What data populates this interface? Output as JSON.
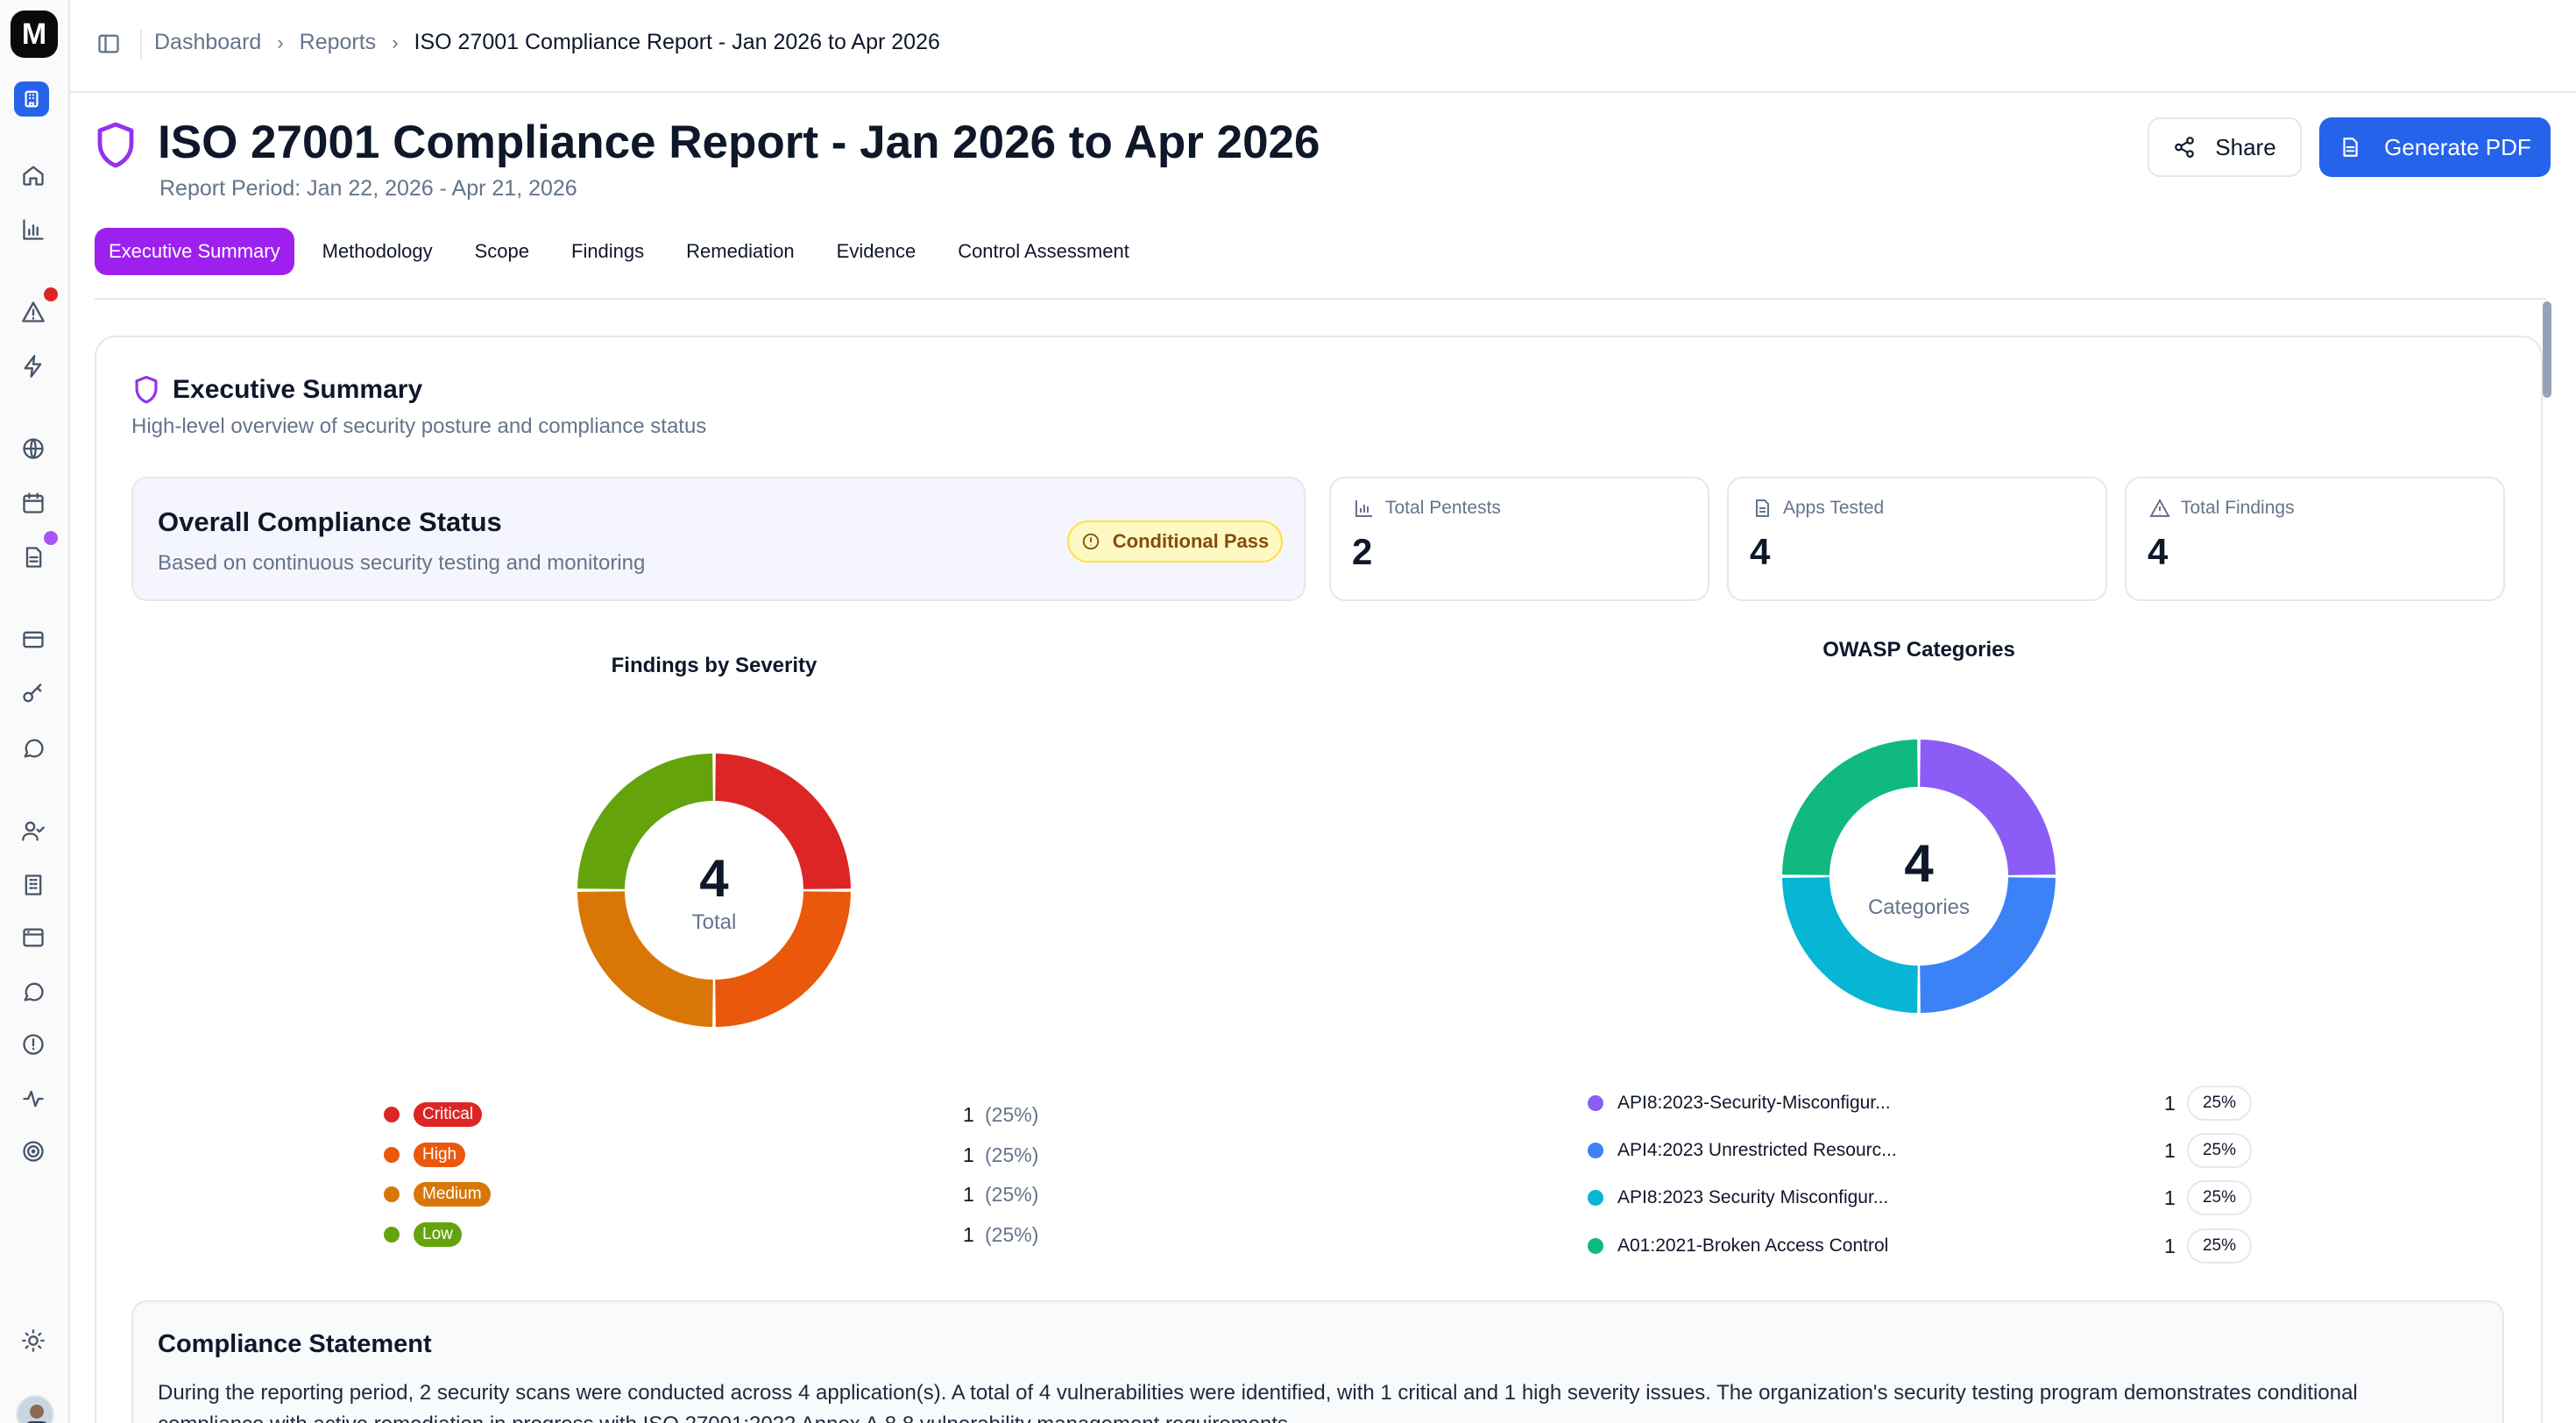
{
  "sidebar": {
    "logo_letter": "M",
    "icons": [
      "home-icon",
      "chart-icon",
      "alert-icon",
      "bolt-icon",
      "globe-icon",
      "calendar-icon",
      "document-icon",
      "card-icon",
      "key-icon",
      "chat-icon",
      "user-check-icon",
      "building-icon",
      "browser-icon",
      "message-icon",
      "info-circle-icon",
      "activity-icon",
      "target-icon",
      "sun-icon"
    ]
  },
  "breadcrumb": {
    "items": [
      "Dashboard",
      "Reports",
      "ISO 27001 Compliance Report - Jan 2026 to Apr 2026"
    ]
  },
  "header": {
    "title": "ISO 27001 Compliance Report - Jan 2026 to Apr 2026",
    "period": "Report Period: Jan 22, 2026 - Apr 21, 2026",
    "share_label": "Share",
    "pdf_label": "Generate PDF"
  },
  "tabs": [
    "Executive Summary",
    "Methodology",
    "Scope",
    "Findings",
    "Remediation",
    "Evidence",
    "Control Assessment"
  ],
  "summary": {
    "title": "Executive Summary",
    "subtitle": "High-level overview of security posture and compliance status",
    "status_title": "Overall Compliance Status",
    "status_subtitle": "Based on continuous security testing and monitoring",
    "status_badge": "Conditional Pass",
    "stats": [
      {
        "label": "Total Pentests",
        "value": "2"
      },
      {
        "label": "Apps Tested",
        "value": "4"
      },
      {
        "label": "Total Findings",
        "value": "4"
      }
    ]
  },
  "severity_chart": {
    "title": "Findings by Severity",
    "center_value": "4",
    "center_caption": "Total",
    "rows": [
      {
        "label": "Critical",
        "count": "1",
        "pct": "(25%)",
        "color": "#dc2626"
      },
      {
        "label": "High",
        "count": "1",
        "pct": "(25%)",
        "color": "#ea580c"
      },
      {
        "label": "Medium",
        "count": "1",
        "pct": "(25%)",
        "color": "#d97706"
      },
      {
        "label": "Low",
        "count": "1",
        "pct": "(25%)",
        "color": "#65a30d"
      }
    ]
  },
  "owasp_chart": {
    "title": "OWASP Categories",
    "center_value": "4",
    "center_caption": "Categories",
    "rows": [
      {
        "label": "API8:2023-Security-Misconfigur...",
        "count": "1",
        "pct": "25%",
        "color": "#8b5cf6"
      },
      {
        "label": "API4:2023 Unrestricted Resourc...",
        "count": "1",
        "pct": "25%",
        "color": "#3b82f6"
      },
      {
        "label": "API8:2023 Security Misconfigur...",
        "count": "1",
        "pct": "25%",
        "color": "#06b6d4"
      },
      {
        "label": "A01:2021-Broken Access Control",
        "count": "1",
        "pct": "25%",
        "color": "#10b981"
      }
    ]
  },
  "chart_data": [
    {
      "type": "pie",
      "title": "Findings by Severity",
      "categories": [
        "Critical",
        "High",
        "Medium",
        "Low"
      ],
      "values": [
        1,
        1,
        1,
        1
      ],
      "colors": [
        "#dc2626",
        "#ea580c",
        "#d97706",
        "#65a30d"
      ]
    },
    {
      "type": "pie",
      "title": "OWASP Categories",
      "categories": [
        "API8:2023-Security-Misconfigur...",
        "API4:2023 Unrestricted Resourc...",
        "API8:2023 Security Misconfigur...",
        "A01:2021-Broken Access Control"
      ],
      "values": [
        1,
        1,
        1,
        1
      ],
      "colors": [
        "#8b5cf6",
        "#3b82f6",
        "#06b6d4",
        "#10b981"
      ]
    }
  ],
  "statement": {
    "title": "Compliance Statement",
    "text": "During the reporting period, 2 security scans were conducted across 4 application(s). A total of 4 vulnerabilities were identified, with 1 critical and 1 high severity issues. The organization's security testing program demonstrates conditional compliance with active remediation in progress with ISO 27001:2022 Annex A.8.8 vulnerability management requirements."
  }
}
